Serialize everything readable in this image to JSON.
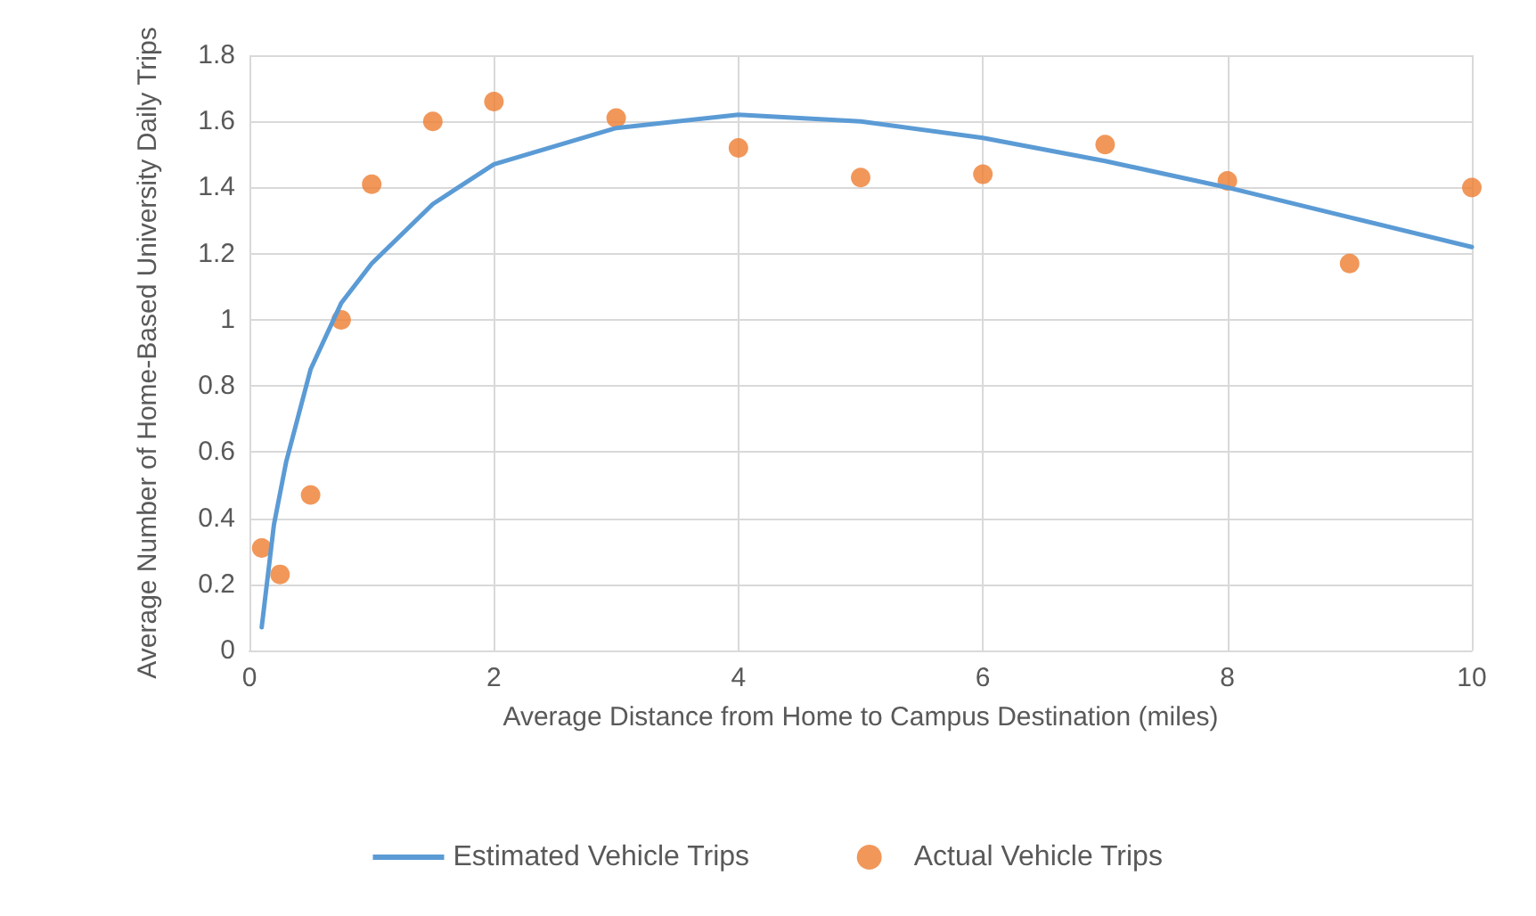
{
  "chart_data": {
    "type": "scatter",
    "xlabel": "Average Distance from Home to Campus Destination (miles)",
    "ylabel": "Average Number of Home-Based University Daily Trips",
    "xlim": [
      0,
      10
    ],
    "xticks": [
      0,
      2,
      4,
      6,
      8,
      10
    ],
    "ylim": [
      0,
      1.8
    ],
    "yticks": [
      0,
      0.2,
      0.4,
      0.6,
      0.8,
      1,
      1.2,
      1.4,
      1.6,
      1.8
    ],
    "grid": true,
    "legend": "bottom",
    "series": [
      {
        "name": "Estimated Vehicle Trips",
        "type": "line",
        "marker": "none",
        "color": "#5b9bd5",
        "x": [
          0.1,
          0.2,
          0.3,
          0.5,
          0.75,
          1,
          1.5,
          2,
          3,
          4,
          5,
          6,
          7,
          8,
          9,
          10
        ],
        "values": [
          0.07,
          0.38,
          0.57,
          0.85,
          1.05,
          1.17,
          1.35,
          1.47,
          1.58,
          1.62,
          1.6,
          1.55,
          1.48,
          1.4,
          1.31,
          1.22
        ]
      },
      {
        "name": "Actual Vehicle Trips",
        "marker": "circle",
        "color": "#ed7d31",
        "x": [
          0.1,
          0.25,
          0.5,
          0.75,
          1,
          1.5,
          2,
          3,
          4,
          5,
          6,
          7,
          8,
          9,
          10
        ],
        "values": [
          0.31,
          0.23,
          0.47,
          1.0,
          1.41,
          1.6,
          1.66,
          1.61,
          1.52,
          1.43,
          1.44,
          1.53,
          1.42,
          1.17,
          1.4
        ]
      }
    ]
  }
}
